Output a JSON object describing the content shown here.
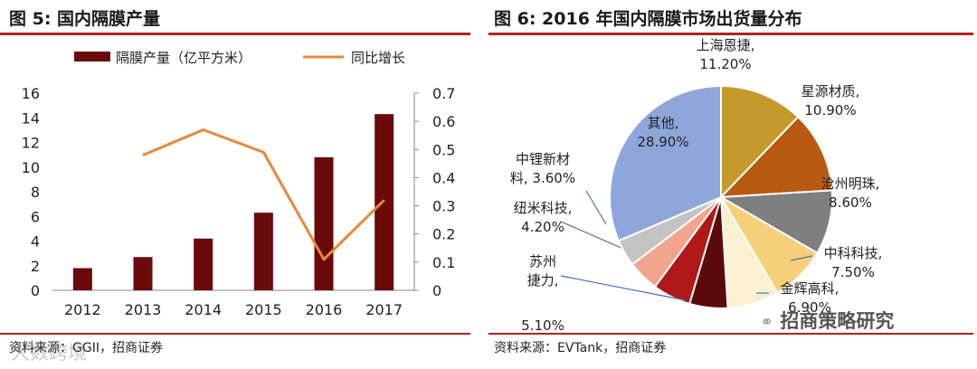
{
  "left": {
    "title": "图 5: 国内隔膜产量",
    "source": "资料来源：GGII，招商证券",
    "chart_data": {
      "type": "bar",
      "categories": [
        "2012",
        "2013",
        "2014",
        "2015",
        "2016",
        "2017"
      ],
      "series": [
        {
          "name": "隔膜产量（亿平方米）",
          "kind": "bar",
          "axis": "left",
          "values": [
            1.8,
            2.7,
            4.2,
            6.3,
            10.8,
            14.3
          ]
        },
        {
          "name": "同比增长",
          "kind": "line",
          "axis": "right",
          "values": [
            null,
            0.48,
            0.57,
            0.49,
            0.11,
            0.32
          ]
        }
      ],
      "ylim_left": [
        0,
        16
      ],
      "yticks_left": [
        "0",
        "2",
        "4",
        "6",
        "8",
        "10",
        "12",
        "14",
        "16"
      ],
      "ylim_right": [
        0,
        0.7
      ],
      "yticks_right": [
        "0",
        "0.1",
        "0.2",
        "0.3",
        "0.4",
        "0.5",
        "0.6",
        "0.7"
      ],
      "legend": "top",
      "colors": {
        "bar": "#6b0a0a",
        "line": "#e8873a"
      }
    }
  },
  "right": {
    "title": "图 6: 2016 年国内隔膜市场出货量分布",
    "source": "资料来源：EVTank，招商证券",
    "chart_data": {
      "type": "pie",
      "slices": [
        {
          "label_lines": [
            "上海恩捷,",
            "11.20%"
          ],
          "value": 11.2,
          "color": "#c49a2c"
        },
        {
          "label_lines": [
            "星源材质,",
            "10.90%"
          ],
          "value": 10.9,
          "color": "#b85a12"
        },
        {
          "label_lines": [
            "沧州明珠,",
            "8.60%"
          ],
          "value": 8.6,
          "color": "#7f7f7f"
        },
        {
          "label_lines": [
            "中科科技,",
            "7.50%"
          ],
          "value": 7.5,
          "color": "#f6cf7a"
        },
        {
          "label_lines": [
            "金辉高科,",
            "6.90%"
          ],
          "value": 6.9,
          "color": "#fbf0cf"
        },
        {
          "label_lines": [
            "",
            "5.10%"
          ],
          "value": 5.1,
          "color": "#5b0a0a"
        },
        {
          "label_lines": [
            "苏州",
            "捷力,"
          ],
          "value": 5.1,
          "color": "#b01818"
        },
        {
          "label_lines": [
            "纽米科技,",
            "4.20%"
          ],
          "value": 4.2,
          "color": "#f2a58c"
        },
        {
          "label_lines": [
            "中锂新材",
            "料, 3.60%"
          ],
          "value": 3.6,
          "color": "#c3c3c3"
        },
        {
          "label_lines": [
            "其他,",
            "28.90%"
          ],
          "value": 28.9,
          "color": "#8ea6d9"
        }
      ]
    }
  },
  "watermarks": {
    "left": "大数跨境",
    "right": "招商策略研究"
  }
}
